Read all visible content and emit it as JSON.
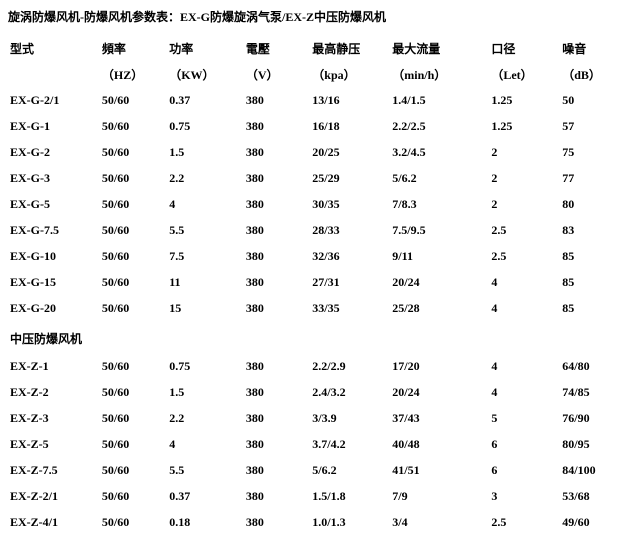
{
  "title": "旋涡防爆风机-防爆风机参数表：EX-G防爆旋涡气泵/EX-Z中压防爆风机",
  "headers": {
    "model": "型式",
    "freq": "頻率",
    "power": "功率",
    "voltage": "電壓",
    "pressure": "最高静压",
    "flow": "最大流量",
    "diameter": "口径",
    "noise": "噪音"
  },
  "units": {
    "freq": "（HZ）",
    "power": "（KW）",
    "voltage": "（V）",
    "pressure": "（kpa）",
    "flow": "（min/h）",
    "diameter": "（Let）",
    "noise": "（dB）"
  },
  "rows1": [
    {
      "model": "EX-G-2/1",
      "freq": "50/60",
      "power": "0.37",
      "voltage": "380",
      "pressure": "13/16",
      "flow": "1.4/1.5",
      "diameter": "1.25",
      "noise": "50"
    },
    {
      "model": "EX-G-1",
      "freq": "50/60",
      "power": "0.75",
      "voltage": "380",
      "pressure": "16/18",
      "flow": "2.2/2.5",
      "diameter": "1.25",
      "noise": "57"
    },
    {
      "model": "EX-G-2",
      "freq": "50/60",
      "power": "1.5",
      "voltage": "380",
      "pressure": "20/25",
      "flow": "3.2/4.5",
      "diameter": "2",
      "noise": "75"
    },
    {
      "model": "EX-G-3",
      "freq": "50/60",
      "power": "2.2",
      "voltage": "380",
      "pressure": "25/29",
      "flow": "5/6.2",
      "diameter": "2",
      "noise": "77"
    },
    {
      "model": "EX-G-5",
      "freq": "50/60",
      "power": "4",
      "voltage": "380",
      "pressure": "30/35",
      "flow": "7/8.3",
      "diameter": "2",
      "noise": "80"
    },
    {
      "model": "EX-G-7.5",
      "freq": "50/60",
      "power": "5.5",
      "voltage": "380",
      "pressure": "28/33",
      "flow": "7.5/9.5",
      "diameter": "2.5",
      "noise": "83"
    },
    {
      "model": "EX-G-10",
      "freq": "50/60",
      "power": "7.5",
      "voltage": "380",
      "pressure": "32/36",
      "flow": "9/11",
      "diameter": "2.5",
      "noise": "85"
    },
    {
      "model": "EX-G-15",
      "freq": "50/60",
      "power": "11",
      "voltage": "380",
      "pressure": "27/31",
      "flow": "20/24",
      "diameter": "4",
      "noise": "85"
    },
    {
      "model": "EX-G-20",
      "freq": "50/60",
      "power": "15",
      "voltage": "380",
      "pressure": "33/35",
      "flow": "25/28",
      "diameter": "4",
      "noise": "85"
    }
  ],
  "section2_title": "中压防爆风机",
  "rows2": [
    {
      "model": "EX-Z-1",
      "freq": "50/60",
      "power": "0.75",
      "voltage": "380",
      "pressure": "2.2/2.9",
      "flow": "17/20",
      "diameter": "4",
      "noise": "64/80"
    },
    {
      "model": "EX-Z-2",
      "freq": "50/60",
      "power": "1.5",
      "voltage": "380",
      "pressure": "2.4/3.2",
      "flow": "20/24",
      "diameter": "4",
      "noise": "74/85"
    },
    {
      "model": "EX-Z-3",
      "freq": "50/60",
      "power": "2.2",
      "voltage": "380",
      "pressure": "3/3.9",
      "flow": "37/43",
      "diameter": "5",
      "noise": "76/90"
    },
    {
      "model": "EX-Z-5",
      "freq": "50/60",
      "power": "4",
      "voltage": "380",
      "pressure": "3.7/4.2",
      "flow": "40/48",
      "diameter": "6",
      "noise": "80/95"
    },
    {
      "model": "EX-Z-7.5",
      "freq": "50/60",
      "power": "5.5",
      "voltage": "380",
      "pressure": "5/6.2",
      "flow": "41/51",
      "diameter": "6",
      "noise": "84/100"
    },
    {
      "model": "EX-Z-2/1",
      "freq": "50/60",
      "power": "0.37",
      "voltage": "380",
      "pressure": "1.5/1.8",
      "flow": "7/9",
      "diameter": "3",
      "noise": "53/68"
    },
    {
      "model": "EX-Z-4/1",
      "freq": "50/60",
      "power": "0.18",
      "voltage": "380",
      "pressure": "1.0/1.3",
      "flow": "3/4",
      "diameter": "2.5",
      "noise": "49/60"
    }
  ]
}
